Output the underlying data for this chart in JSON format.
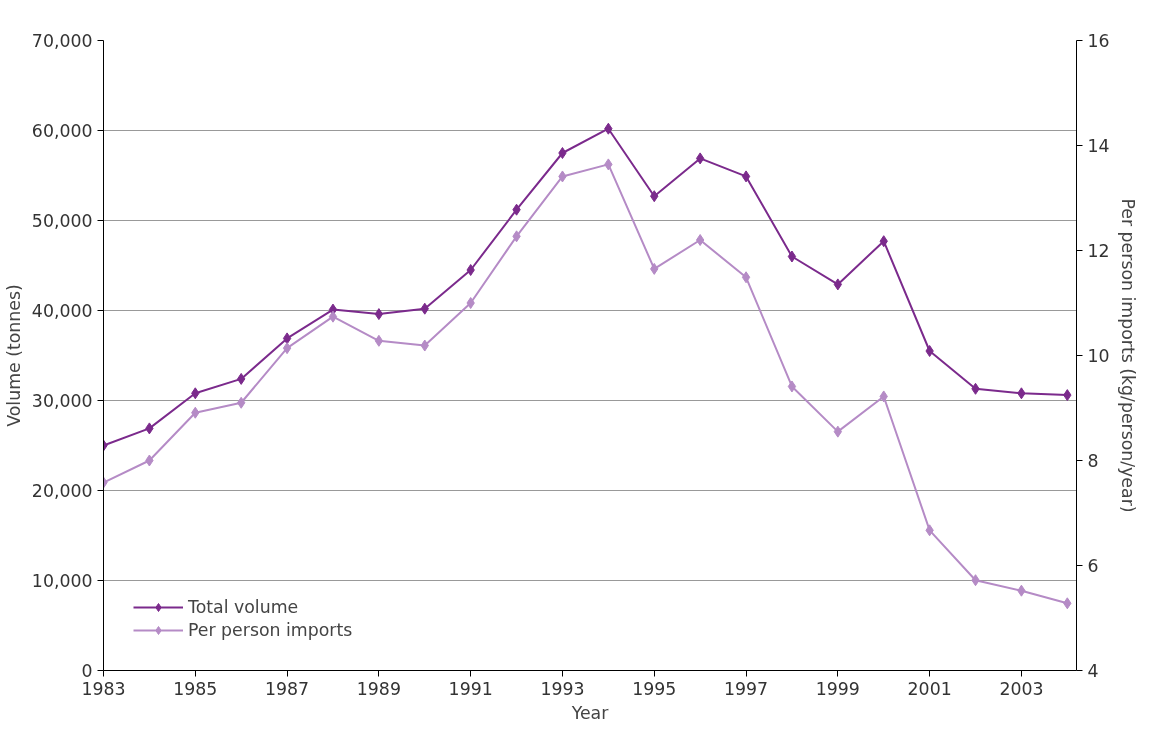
{
  "chart_data": {
    "type": "line",
    "xlabel": "Year",
    "ylabel": "Volume (tonnes)",
    "y2label": "Per person imports (kg/person/year)",
    "x": [
      1983,
      1984,
      1985,
      1986,
      1987,
      1988,
      1989,
      1990,
      1991,
      1992,
      1993,
      1994,
      1995,
      1996,
      1997,
      1998,
      1999,
      2000,
      2001,
      2002,
      2003,
      2004
    ],
    "series": [
      {
        "name": "Total volume",
        "color": "#7b2a8c",
        "values": [
          25000,
          26900,
          30800,
          32400,
          36900,
          40100,
          39600,
          40200,
          44500,
          51200,
          57500,
          60200,
          52700,
          56900,
          54900,
          46000,
          42900,
          47700,
          35500,
          31300,
          30800,
          30600
        ]
      },
      {
        "name": "Per person imports",
        "color": "#b58bc6",
        "axis": "y2",
        "values": [
          7.58,
          8.0,
          8.91,
          9.1,
          10.14,
          10.74,
          10.28,
          10.19,
          11.0,
          12.27,
          13.41,
          13.64,
          11.65,
          12.2,
          11.49,
          9.41,
          8.55,
          9.22,
          6.67,
          5.72,
          5.52,
          5.28
        ]
      }
    ],
    "xlim": [
      1983,
      2004.2
    ],
    "xticks": [
      1983,
      1985,
      1987,
      1989,
      1991,
      1993,
      1995,
      1997,
      1999,
      2001,
      2003
    ],
    "ylim": [
      0,
      70000
    ],
    "yticks": [
      {
        "value": 0,
        "label": "0"
      },
      {
        "value": 10000,
        "label": "10,000"
      },
      {
        "value": 20000,
        "label": "20,000"
      },
      {
        "value": 30000,
        "label": "30,000"
      },
      {
        "value": 40000,
        "label": "40,000"
      },
      {
        "value": 50000,
        "label": "50,000"
      },
      {
        "value": 60000,
        "label": "60,000"
      },
      {
        "value": 70000,
        "label": "70,000"
      }
    ],
    "y2lim": [
      4,
      16
    ],
    "y2ticks": [
      4,
      6,
      8,
      10,
      12,
      14,
      16
    ],
    "grid": "y",
    "legend": "bottom left",
    "marker": "diamond",
    "line_style": "solid"
  }
}
